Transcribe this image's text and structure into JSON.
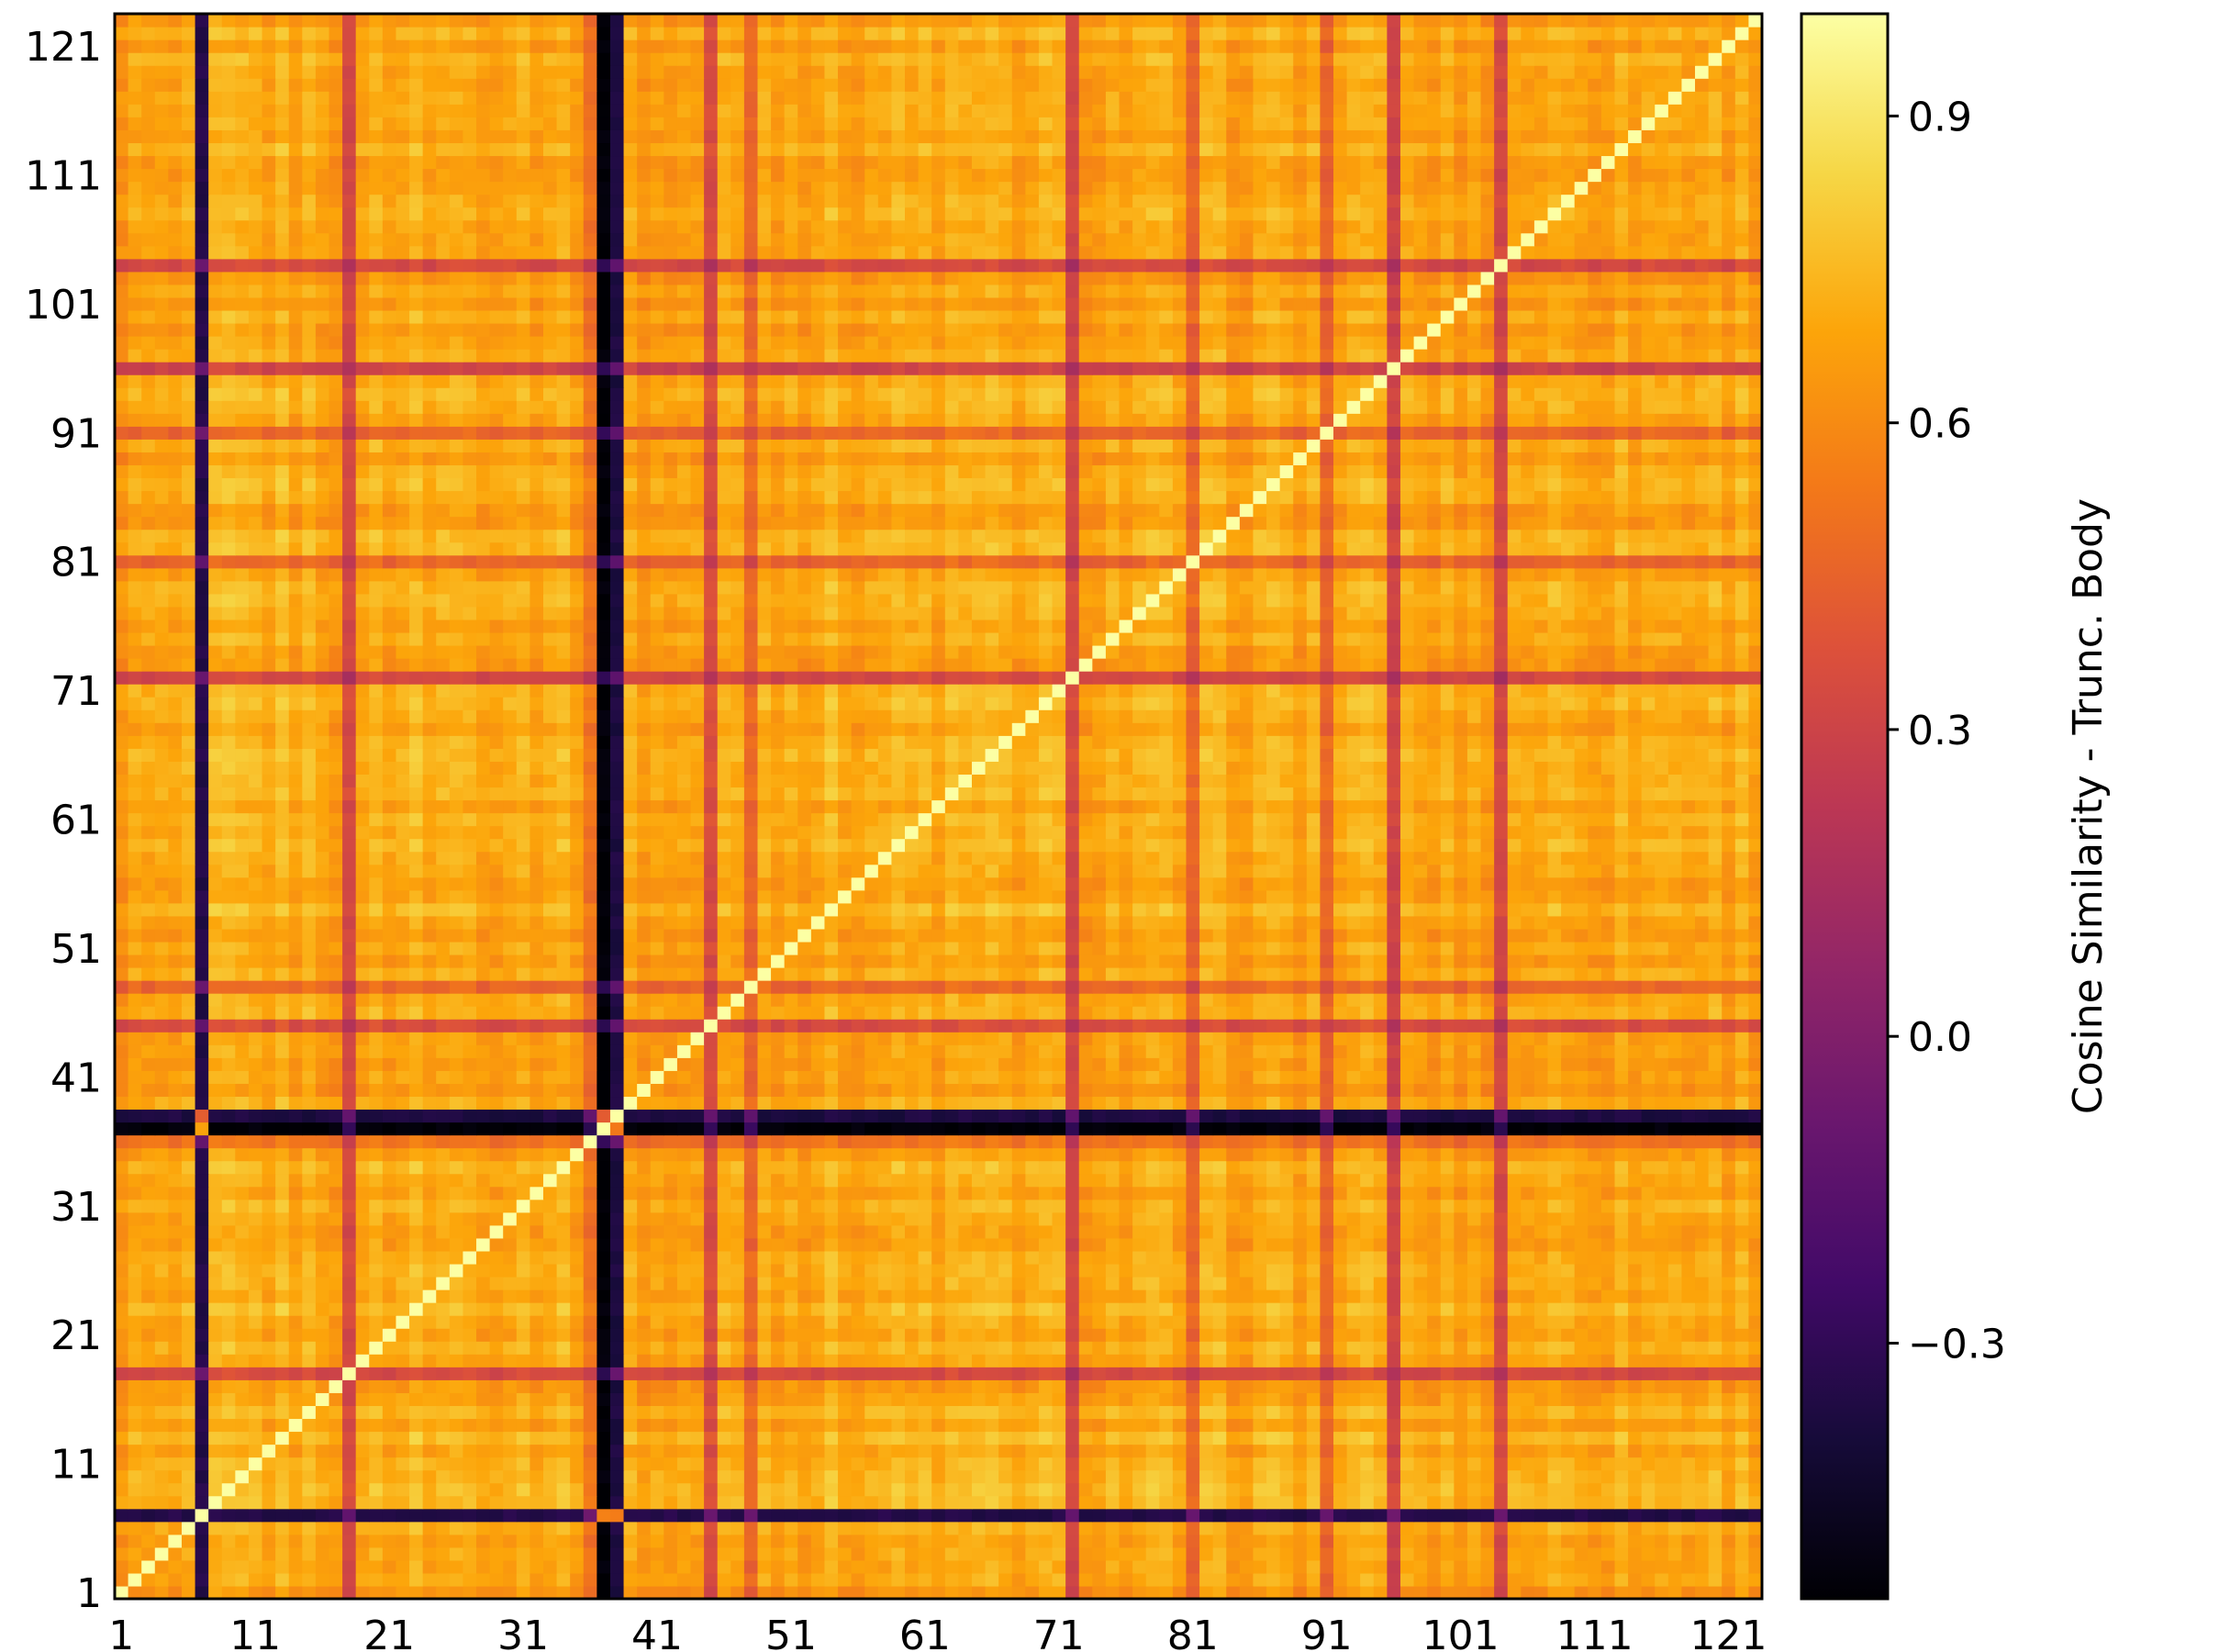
{
  "chart_data": {
    "type": "heatmap",
    "title": "",
    "xlabel": "",
    "ylabel": "",
    "n": 123,
    "x_tick_labels": [
      "1",
      "11",
      "21",
      "31",
      "41",
      "51",
      "61",
      "71",
      "81",
      "91",
      "101",
      "111",
      "121"
    ],
    "y_tick_labels": [
      "1",
      "11",
      "21",
      "31",
      "41",
      "51",
      "61",
      "71",
      "81",
      "91",
      "101",
      "111",
      "121"
    ],
    "tick_values": [
      1,
      11,
      21,
      31,
      41,
      51,
      61,
      71,
      81,
      91,
      101,
      111,
      121
    ],
    "colorbar": {
      "label": "Cosine Similarity - Trunc. Body",
      "range": [
        -0.55,
        1.0
      ],
      "ticks": [
        -0.3,
        0.0,
        0.3,
        0.6,
        0.9
      ],
      "tick_labels": [
        "−0.3",
        "0.0",
        "0.3",
        "0.6",
        "0.9"
      ],
      "colormap": "inferno"
    },
    "diagonal_value": 1.0,
    "baseline_similarity": 0.78,
    "low_rows": [
      {
        "index": 7,
        "factor": 0.03
      },
      {
        "index": 37,
        "factor": -0.05
      },
      {
        "index": 38,
        "factor": 0.02
      }
    ],
    "medium_rows": [
      {
        "index": 18,
        "factor": 0.45
      },
      {
        "index": 45,
        "factor": 0.48
      },
      {
        "index": 72,
        "factor": 0.45
      },
      {
        "index": 96,
        "factor": 0.42
      },
      {
        "index": 104,
        "factor": 0.45
      },
      {
        "index": 91,
        "factor": 0.62
      },
      {
        "index": 81,
        "factor": 0.62
      },
      {
        "index": 48,
        "factor": 0.62
      },
      {
        "index": 36,
        "factor": 0.7
      }
    ],
    "block_regions": [
      {
        "start": 1,
        "end": 6,
        "shift": -0.04
      },
      {
        "start": 8,
        "end": 16,
        "shift": 0.05
      },
      {
        "start": 19,
        "end": 35,
        "shift": 0.06
      },
      {
        "start": 39,
        "end": 44,
        "shift": -0.03
      },
      {
        "start": 46,
        "end": 71,
        "shift": 0.04
      },
      {
        "start": 73,
        "end": 95,
        "shift": 0.02
      },
      {
        "start": 97,
        "end": 103,
        "shift": -0.02
      },
      {
        "start": 105,
        "end": 123,
        "shift": 0.03
      }
    ]
  }
}
